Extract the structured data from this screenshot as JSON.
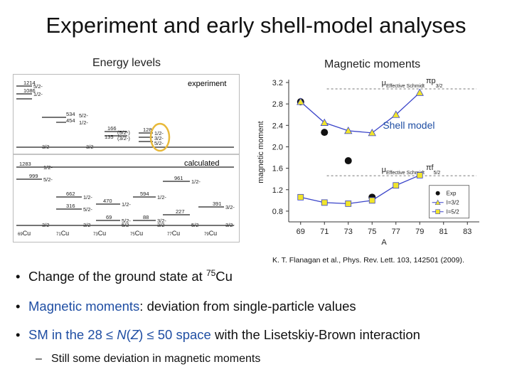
{
  "slide": {
    "title": "Experiment and early shell-model analyses",
    "energy_label": "Energy levels",
    "magnetic_label": "Magnetic moments",
    "citation": "K. T. Flanagan et al., Phys. Rev. Lett. 103, 142501 (2009).",
    "bullets": {
      "b1_text": "Change of the ground state at ",
      "b1_sup": "75",
      "b1_el": "Cu",
      "b2_hl": "Magnetic moments",
      "b2_rest": ": deviation from single-particle values",
      "b3_pre": "SM in the 28 ≤ ",
      "b3_italic": "N",
      "b3_paren": "(",
      "b3_italic2": "Z",
      "b3_mid": ") ≤ 50 space",
      "b3_rest": " with the Lisetskiy-Brown interaction",
      "sub": "Still some deviation in magnetic moments",
      "sub_dash": "–",
      "bullet_char": "•"
    }
  },
  "level_scheme": {
    "experiment_label": "experiment",
    "calculated_label": "calculated",
    "experiment_levels": [
      {
        "energy": "1214",
        "spin": "5/2-"
      },
      {
        "energy": "1086",
        "spin": "1/2-"
      },
      {
        "energy": "534",
        "spin": "5/2-"
      },
      {
        "energy": "454",
        "spin": "1/2-"
      },
      {
        "energy": "166",
        "spin": "(5/2-)"
      },
      {
        "energy": "135",
        "spin": "(3/2-)"
      },
      {
        "energy": "128",
        "spin": "1/2-"
      },
      {
        "energy": "",
        "spin": "3/2-"
      },
      {
        "energy": "",
        "spin": "5/2-"
      },
      {
        "energy": "",
        "spin": "3/2-"
      },
      {
        "energy": "",
        "spin": "3/2-"
      }
    ],
    "calculated_levels": [
      {
        "energy": "1283",
        "spin": "1/2-"
      },
      {
        "energy": "999",
        "spin": "5/2-"
      },
      {
        "energy": "961",
        "spin": "1/2-"
      },
      {
        "energy": "662",
        "spin": "1/2-"
      },
      {
        "energy": "470",
        "spin": "1/2-"
      },
      {
        "energy": "594",
        "spin": "1/2-"
      },
      {
        "energy": "316",
        "spin": "5/2-"
      },
      {
        "energy": "391",
        "spin": "3/2-"
      },
      {
        "energy": "69",
        "spin": "5/2-"
      },
      {
        "energy": "88",
        "spin": "3/2-"
      },
      {
        "energy": "227",
        "spin": "5/2-"
      },
      {
        "energy": "",
        "spin": "3/2-"
      },
      {
        "energy": "",
        "spin": "3/2-"
      },
      {
        "energy": "",
        "spin": "5/2-"
      },
      {
        "energy": "",
        "spin": "3/2-"
      },
      {
        "energy": "",
        "spin": "5/2-"
      },
      {
        "energy": "",
        "spin": "3/2-"
      }
    ],
    "isotopes": [
      {
        "mass": "69",
        "el": "Cu"
      },
      {
        "mass": "71",
        "el": "Cu"
      },
      {
        "mass": "73",
        "el": "Cu"
      },
      {
        "mass": "75",
        "el": "Cu"
      },
      {
        "mass": "77",
        "el": "Cu"
      },
      {
        "mass": "79",
        "el": "Cu"
      }
    ],
    "highlight_color": "#e8b93a"
  },
  "chart_data": {
    "type": "scatter",
    "xlabel": "A",
    "ylabel": "magnetic moment",
    "xlim": [
      68,
      84
    ],
    "ylim": [
      0.6,
      3.2
    ],
    "xticks": [
      69,
      71,
      73,
      75,
      77,
      79,
      81,
      83
    ],
    "yticks": [
      0.8,
      1.2,
      1.6,
      2.0,
      2.4,
      2.8,
      3.2
    ],
    "grid": false,
    "legend_position": "bottom-right",
    "annotation": "Shell model",
    "annotation_color": "#1f4ea3",
    "ref_lines": [
      {
        "label_main": "μ",
        "label_sub": "Effective Schmidt",
        "orbital": "πp",
        "orbital_sub": "3/2",
        "y": 3.08
      },
      {
        "label_main": "μ",
        "label_sub": "Effective Schmidt",
        "orbital": "πf",
        "orbital_sub": "5/2",
        "y": 1.46
      }
    ],
    "series": [
      {
        "name": "Exp",
        "marker": "circle",
        "color": "#111111",
        "x": [
          69,
          71,
          73,
          75
        ],
        "y": [
          2.84,
          2.27,
          1.74,
          1.06
        ]
      },
      {
        "name": "I=3/2",
        "marker": "triangle",
        "color": "#f1e52a",
        "line_color": "#3a44c9",
        "x": [
          69,
          71,
          73,
          75,
          77,
          79
        ],
        "y": [
          2.84,
          2.45,
          2.3,
          2.26,
          2.6,
          3.01
        ]
      },
      {
        "name": "I=5/2",
        "marker": "square",
        "color": "#f1e52a",
        "line_color": "#3a44c9",
        "x": [
          69,
          71,
          73,
          75,
          77,
          79
        ],
        "y": [
          1.06,
          0.96,
          0.94,
          1.0,
          1.28,
          1.47
        ]
      }
    ]
  }
}
